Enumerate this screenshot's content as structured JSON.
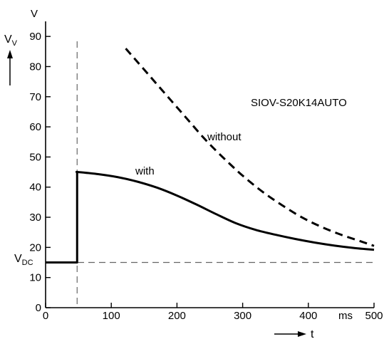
{
  "chart_data": {
    "type": "line",
    "title": "",
    "annotation": "SIOV-S20K14AUTO",
    "x_unit": "ms",
    "y_unit": "V",
    "xlim": [
      0,
      500
    ],
    "ylim": [
      0,
      95
    ],
    "x_ticks": [
      0,
      100,
      200,
      300,
      400,
      500
    ],
    "y_ticks": [
      0,
      10,
      20,
      30,
      40,
      50,
      60,
      70,
      80,
      90
    ],
    "y_axis_symbol": {
      "main": "V",
      "sub": "V"
    },
    "x_axis_symbol": "t",
    "reference_line": {
      "label_main": "V",
      "label_sub": "DC",
      "y": 15
    },
    "event_line": {
      "x": 48
    },
    "series": [
      {
        "name": "with",
        "style": "solid",
        "x": [
          0,
          48,
          48,
          50,
          80,
          110,
          140,
          170,
          200,
          230,
          260,
          290,
          320,
          350,
          380,
          410,
          440,
          470,
          500
        ],
        "y": [
          15,
          15,
          45,
          45,
          44.3,
          43.3,
          41.8,
          39.8,
          37.2,
          34.2,
          31,
          28,
          25.8,
          24.2,
          22.8,
          21.6,
          20.6,
          19.8,
          19.2
        ]
      },
      {
        "name": "without",
        "style": "dashed",
        "x": [
          122,
          140,
          160,
          180,
          200,
          220,
          240,
          260,
          280,
          300,
          330,
          360,
          390,
          420,
          450,
          480,
          500
        ],
        "y": [
          86,
          81.5,
          76.5,
          71.5,
          66.5,
          61.5,
          56.5,
          52,
          47.8,
          43.8,
          38.5,
          34,
          30,
          26.8,
          24.2,
          22,
          20.5
        ]
      }
    ]
  }
}
